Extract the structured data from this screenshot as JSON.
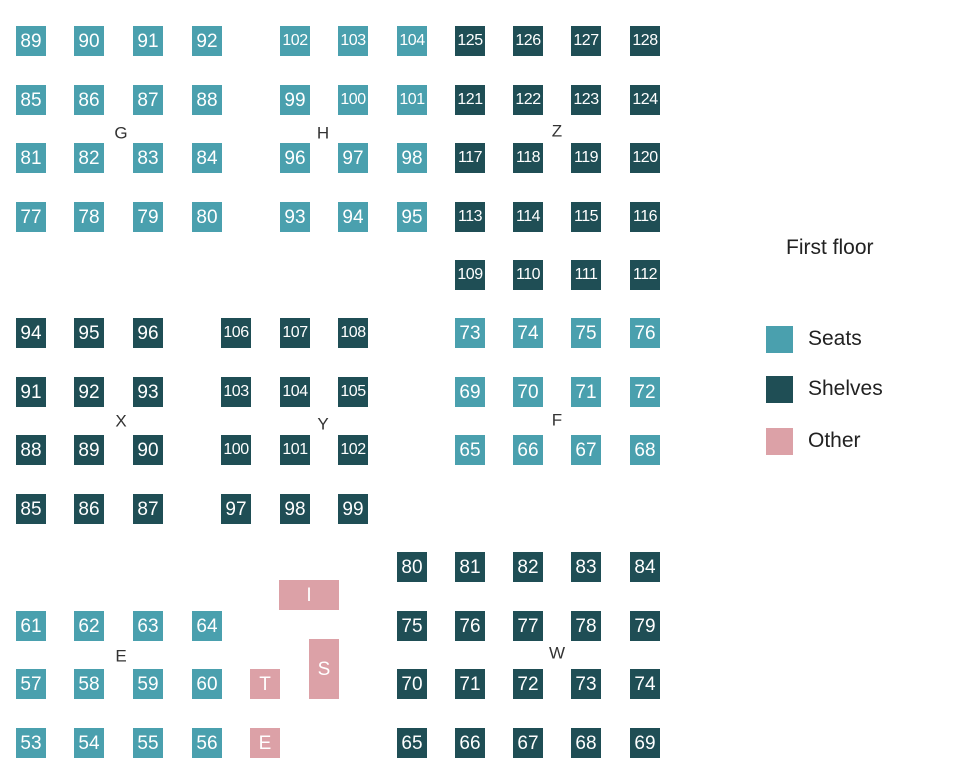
{
  "colors": {
    "seats": "#4aa0ae",
    "shelves": "#1f4e55",
    "other": "#dca1a7"
  },
  "legend": {
    "title": "First floor",
    "items": [
      {
        "label": "Seats",
        "category": "seats"
      },
      {
        "label": "Shelves",
        "category": "shelves"
      },
      {
        "label": "Other",
        "category": "other"
      }
    ]
  },
  "sections": [
    {
      "name": "G",
      "category": "seats",
      "rows": [
        [
          "89",
          "90",
          "91",
          "92"
        ],
        [
          "85",
          "86",
          "87",
          "88"
        ],
        [
          "81",
          "82",
          "83",
          "84"
        ],
        [
          "77",
          "78",
          "79",
          "80"
        ]
      ]
    },
    {
      "name": "H",
      "category": "seats",
      "rows": [
        [
          "102",
          "103",
          "104"
        ],
        [
          "99",
          "100",
          "101"
        ],
        [
          "96",
          "97",
          "98"
        ],
        [
          "93",
          "94",
          "95"
        ]
      ]
    },
    {
      "name": "Z",
      "category": "shelves",
      "rows": [
        [
          "125",
          "126",
          "127",
          "128"
        ],
        [
          "121",
          "122",
          "123",
          "124"
        ],
        [
          "117",
          "118",
          "119",
          "120"
        ],
        [
          "113",
          "114",
          "115",
          "116"
        ],
        [
          "109",
          "110",
          "111",
          "112"
        ]
      ]
    },
    {
      "name": "X",
      "category": "shelves",
      "rows": [
        [
          "94",
          "95",
          "96"
        ],
        [
          "91",
          "92",
          "93"
        ],
        [
          "88",
          "89",
          "90"
        ],
        [
          "85",
          "86",
          "87"
        ]
      ]
    },
    {
      "name": "Y",
      "category": "shelves",
      "rows": [
        [
          "106",
          "107",
          "108"
        ],
        [
          "103",
          "104",
          "105"
        ],
        [
          "100",
          "101",
          "102"
        ],
        [
          "97",
          "98",
          "99"
        ]
      ]
    },
    {
      "name": "F",
      "category": "seats",
      "rows": [
        [
          "73",
          "74",
          "75",
          "76"
        ],
        [
          "69",
          "70",
          "71",
          "72"
        ],
        [
          "65",
          "66",
          "67",
          "68"
        ]
      ]
    },
    {
      "name": "E",
      "category": "seats",
      "rows": [
        [
          "61",
          "62",
          "63",
          "64"
        ],
        [
          "57",
          "58",
          "59",
          "60"
        ],
        [
          "53",
          "54",
          "55",
          "56"
        ]
      ]
    },
    {
      "name": "W",
      "category": "shelves",
      "rows": [
        [
          "80",
          "81",
          "82",
          "83",
          "84"
        ],
        [
          "75",
          "76",
          "77",
          "78",
          "79"
        ],
        [
          "70",
          "71",
          "72",
          "73",
          "74"
        ],
        [
          "65",
          "66",
          "67",
          "68",
          "69"
        ]
      ]
    }
  ],
  "other_areas": [
    {
      "label": "I",
      "category": "other"
    },
    {
      "label": "S",
      "category": "other"
    },
    {
      "label": "T",
      "category": "other"
    },
    {
      "label": "E",
      "category": "other"
    }
  ]
}
